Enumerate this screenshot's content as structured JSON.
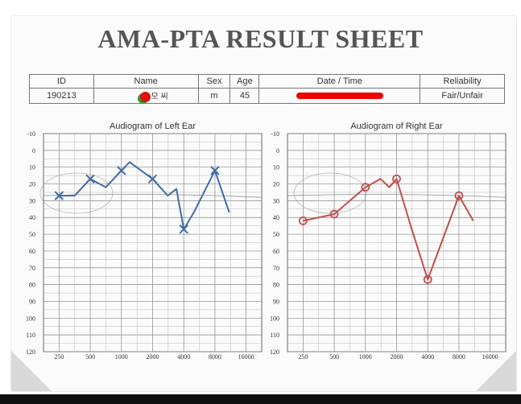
{
  "title": "AMA-PTA RESULT SHEET",
  "info_table": {
    "headers": [
      "ID",
      "Name",
      "Sex",
      "Age",
      "Date / Time",
      "Reliability"
    ],
    "values": {
      "id": "190213",
      "name": "송 모 씨",
      "sex": "m",
      "age": "45",
      "date_time": "",
      "reliability": "Fair/Unfair"
    }
  },
  "chart_data": [
    {
      "type": "line",
      "title": "Audiogram of Left Ear",
      "x_categories": [
        "250",
        "500",
        "1000",
        "2000",
        "4000",
        "8000",
        "16000"
      ],
      "y_ticks": [
        "-10",
        "0",
        "10",
        "20",
        "30",
        "40",
        "50",
        "60",
        "70",
        "80",
        "90",
        "100",
        "110",
        "120"
      ],
      "ylim": [
        -10,
        120
      ],
      "y_inverted": true,
      "series": [
        {
          "marker": "x",
          "color": "#3e6ea8",
          "points": [
            [
              250,
              27
            ],
            [
              354,
              27
            ],
            [
              500,
              17
            ],
            [
              707,
              22
            ],
            [
              1000,
              12
            ],
            [
              1200,
              7
            ],
            [
              2000,
              17
            ],
            [
              2800,
              27
            ],
            [
              3400,
              23
            ],
            [
              4000,
              47
            ],
            [
              5000,
              37
            ],
            [
              8000,
              12
            ],
            [
              11000,
              37
            ]
          ],
          "marked": [
            [
              250,
              27
            ],
            [
              500,
              17
            ],
            [
              1000,
              12
            ],
            [
              2000,
              17
            ],
            [
              4000,
              47
            ],
            [
              8000,
              12
            ]
          ]
        }
      ]
    },
    {
      "type": "line",
      "title": "Audiogram of Right Ear",
      "x_categories": [
        "250",
        "500",
        "1000",
        "2000",
        "4000",
        "8000",
        "16000"
      ],
      "y_ticks": [
        "-10",
        "0",
        "10",
        "20",
        "30",
        "40",
        "50",
        "60",
        "70",
        "80",
        "90",
        "100",
        "110",
        "120"
      ],
      "ylim": [
        -10,
        120
      ],
      "y_inverted": true,
      "series": [
        {
          "marker": "o",
          "color": "#c0504d",
          "points": [
            [
              250,
              42
            ],
            [
              500,
              38
            ],
            [
              1000,
              22
            ],
            [
              1400,
              17
            ],
            [
              1700,
              22
            ],
            [
              2000,
              17
            ],
            [
              2800,
              47
            ],
            [
              4000,
              77
            ],
            [
              8000,
              27
            ],
            [
              11000,
              42
            ]
          ],
          "marked": [
            [
              250,
              42
            ],
            [
              500,
              38
            ],
            [
              1000,
              22
            ],
            [
              2000,
              17
            ],
            [
              4000,
              77
            ],
            [
              8000,
              27
            ]
          ]
        }
      ]
    }
  ]
}
